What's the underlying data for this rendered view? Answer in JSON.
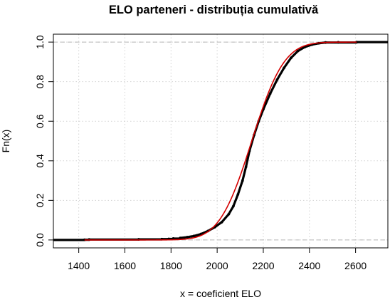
{
  "chart_data": {
    "type": "line",
    "title": "ELO parteneri - distribuția cumulativă",
    "xlabel": "x = coeficient ELO",
    "ylabel": "Fn(x)",
    "xlim": [
      1290,
      2740
    ],
    "ylim": [
      -0.04,
      1.04
    ],
    "x_ticks": [
      1400,
      1600,
      1800,
      2000,
      2200,
      2400,
      2600
    ],
    "y_ticks": [
      0.0,
      0.2,
      0.4,
      0.6,
      0.8,
      1.0
    ],
    "x_tick_labels": [
      "1400",
      "1600",
      "1800",
      "2000",
      "2200",
      "2400",
      "2600"
    ],
    "y_tick_labels": [
      "0.0",
      "0.2",
      "0.4",
      "0.6",
      "0.8",
      "1.0"
    ],
    "grid": true,
    "reference_lines_y": [
      0,
      1
    ],
    "series": [
      {
        "kind": "empirical-cdf",
        "color": "#000000",
        "points": [
          [
            1425,
            0.001
          ],
          [
            1445,
            0.002
          ],
          [
            1660,
            0.003
          ],
          [
            1760,
            0.004
          ],
          [
            1790,
            0.005
          ],
          [
            1810,
            0.007
          ],
          [
            1840,
            0.01
          ],
          [
            1870,
            0.014
          ],
          [
            1900,
            0.02
          ],
          [
            1930,
            0.03
          ],
          [
            1960,
            0.045
          ],
          [
            1990,
            0.065
          ],
          [
            2020,
            0.09
          ],
          [
            2050,
            0.13
          ],
          [
            2070,
            0.17
          ],
          [
            2090,
            0.23
          ],
          [
            2110,
            0.3
          ],
          [
            2125,
            0.37
          ],
          [
            2140,
            0.45
          ],
          [
            2160,
            0.53
          ],
          [
            2180,
            0.6
          ],
          [
            2200,
            0.66
          ],
          [
            2230,
            0.74
          ],
          [
            2260,
            0.81
          ],
          [
            2290,
            0.87
          ],
          [
            2320,
            0.92
          ],
          [
            2350,
            0.955
          ],
          [
            2380,
            0.975
          ],
          [
            2410,
            0.987
          ],
          [
            2440,
            0.994
          ],
          [
            2470,
            0.998
          ],
          [
            2525,
            0.999
          ],
          [
            2605,
            1.0
          ]
        ]
      },
      {
        "kind": "fitted-normal-cdf",
        "color": "#d40000",
        "mean": 2150,
        "sd": 110,
        "range": [
          1425,
          2605
        ]
      }
    ]
  }
}
